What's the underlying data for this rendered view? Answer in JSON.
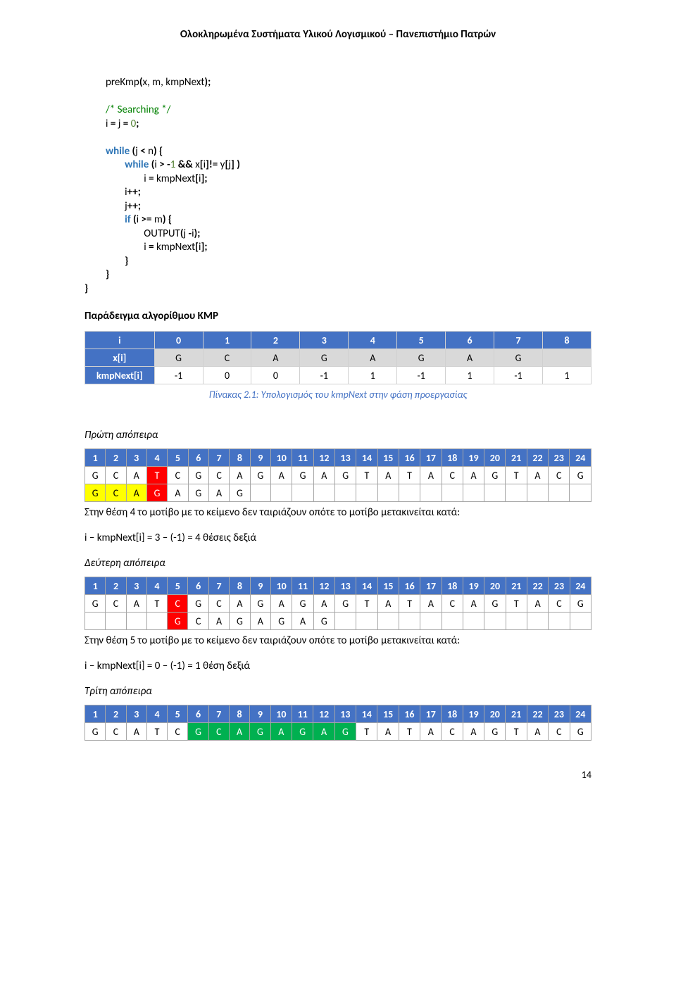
{
  "header": "Ολοκληρωμένα Συστήματα Υλικού Λογισμικού – Πανεπιστήμιο Πατρών",
  "page_number": "14",
  "code": {
    "l1a": "preKmp",
    "l1b": "(",
    "l1c": "x, m, kmpNext",
    "l1d": ");",
    "l2": "/* Searching */",
    "l3a": "i ",
    "l3b": "= ",
    "l3c": "j ",
    "l3d": "= ",
    "l3e": "0",
    "l3f": ";",
    "l4a": "while ",
    "l4b": "(",
    "l4c": "j ",
    "l4d": "< ",
    "l4e": "n",
    "l4f": ") {",
    "l5a": "while ",
    "l5b": "(",
    "l5c": "i ",
    "l5d": "> -",
    "l5e": "1 ",
    "l5f": "&& ",
    "l5g": "x",
    "l5h": "[",
    "l5i": "i",
    "l5j": "]",
    "l5k": "!= ",
    "l5l": "y",
    "l5m": "[",
    "l5n": "j",
    "l5o": "] )",
    "l6a": "i ",
    "l6b": "= ",
    "l6c": "kmpNext",
    "l6d": "[",
    "l6e": "i",
    "l6f": "];",
    "l7a": "i",
    "l7b": "++;",
    "l8a": "j",
    "l8b": "++;",
    "l9a": "if ",
    "l9b": "(",
    "l9c": "i ",
    "l9d": ">= ",
    "l9e": "m",
    "l9f": ") {",
    "l10a": "OUTPUT",
    "l10b": "(",
    "l10c": "j ",
    "l10d": "-",
    "l10e": "i",
    "l10f": ");",
    "l11a": "i ",
    "l11b": "= ",
    "l11c": "kmpNext",
    "l11d": "[",
    "l11e": "i",
    "l11f": "];",
    "l12": "}",
    "l13": "}",
    "l14": "}"
  },
  "example_title": "Παράδειγμα αλγορίθμου KMP",
  "kmp_table": {
    "col_i": "i",
    "col_x": "x[i]",
    "col_k": "kmpNext[i]",
    "idx": [
      "0",
      "1",
      "2",
      "3",
      "4",
      "5",
      "6",
      "7",
      "8"
    ],
    "x": [
      "G",
      "C",
      "A",
      "G",
      "A",
      "G",
      "A",
      "G",
      ""
    ],
    "k": [
      "-1",
      "0",
      "0",
      "-1",
      "1",
      "-1",
      "1",
      "-1",
      "1"
    ]
  },
  "caption": "Πίνακας 2.1: Υπολογισμός του kmpNext στην φάση προεργασίας",
  "attempt1_label": "Πρώτη απόπειρα",
  "text_row": [
    "G",
    "C",
    "A",
    "T",
    "C",
    "G",
    "C",
    "A",
    "G",
    "A",
    "G",
    "A",
    "G",
    "T",
    "A",
    "T",
    "A",
    "C",
    "A",
    "G",
    "T",
    "A",
    "C",
    "G"
  ],
  "big_headers": [
    "1",
    "2",
    "3",
    "4",
    "5",
    "6",
    "7",
    "8",
    "9",
    "10",
    "11",
    "12",
    "13",
    "14",
    "15",
    "16",
    "17",
    "18",
    "19",
    "20",
    "21",
    "22",
    "23",
    "24"
  ],
  "attempt1_pattern": [
    "G",
    "C",
    "A",
    "G",
    "A",
    "G",
    "A",
    "G",
    "",
    "",
    "",
    "",
    "",
    "",
    "",
    "",
    "",
    "",
    "",
    "",
    "",
    "",
    "",
    ""
  ],
  "attempt1_cls": [
    "y",
    "y",
    "y",
    "r",
    "",
    "",
    "",
    "",
    "",
    "",
    "",
    "",
    "",
    "",
    "",
    "",
    "",
    "",
    "",
    "",
    "",
    "",
    "",
    ""
  ],
  "attempt1_text_cls": [
    "",
    "",
    "",
    "r",
    "",
    "",
    "",
    "",
    "",
    "",
    "",
    "",
    "",
    "",
    "",
    "",
    "",
    "",
    "",
    "",
    "",
    "",
    "",
    ""
  ],
  "attempt1_note": "Στην θέση 4 το μοτίβο με το κείμενο δεν ταιριάζουν οπότε το μοτίβο μετακινείται κατά:",
  "attempt1_calc": "i – kmpNext[i] = 3 – (-1) = 4 θέσεις δεξιά",
  "attempt2_label": "Δεύτερη απόπειρα",
  "attempt2_pattern": [
    "",
    "",
    "",
    "",
    "G",
    "C",
    "A",
    "G",
    "A",
    "G",
    "A",
    "G",
    "",
    "",
    "",
    "",
    "",
    "",
    "",
    "",
    "",
    "",
    "",
    ""
  ],
  "attempt2_cls": [
    "",
    "",
    "",
    "",
    "r",
    "",
    "",
    "",
    "",
    "",
    "",
    "",
    "",
    "",
    "",
    "",
    "",
    "",
    "",
    "",
    "",
    "",
    "",
    ""
  ],
  "attempt2_text_cls": [
    "",
    "",
    "",
    "",
    "r",
    "",
    "",
    "",
    "",
    "",
    "",
    "",
    "",
    "",
    "",
    "",
    "",
    "",
    "",
    "",
    "",
    "",
    "",
    ""
  ],
  "attempt2_note": "Στην θέση 5 το μοτίβο με το κείμενο δεν ταιριάζουν οπότε το μοτίβο μετακινείται κατά:",
  "attempt2_calc": "i – kmpNext[i] = 0 – (-1) = 1 θέση δεξιά",
  "attempt3_label": "Τρίτη απόπειρα",
  "attempt3_text_cls": [
    "",
    "",
    "",
    "",
    "",
    "g",
    "g",
    "g",
    "g",
    "g",
    "g",
    "g",
    "g",
    "",
    "",
    "",
    "",
    "",
    "",
    "",
    "",
    "",
    "",
    ""
  ]
}
